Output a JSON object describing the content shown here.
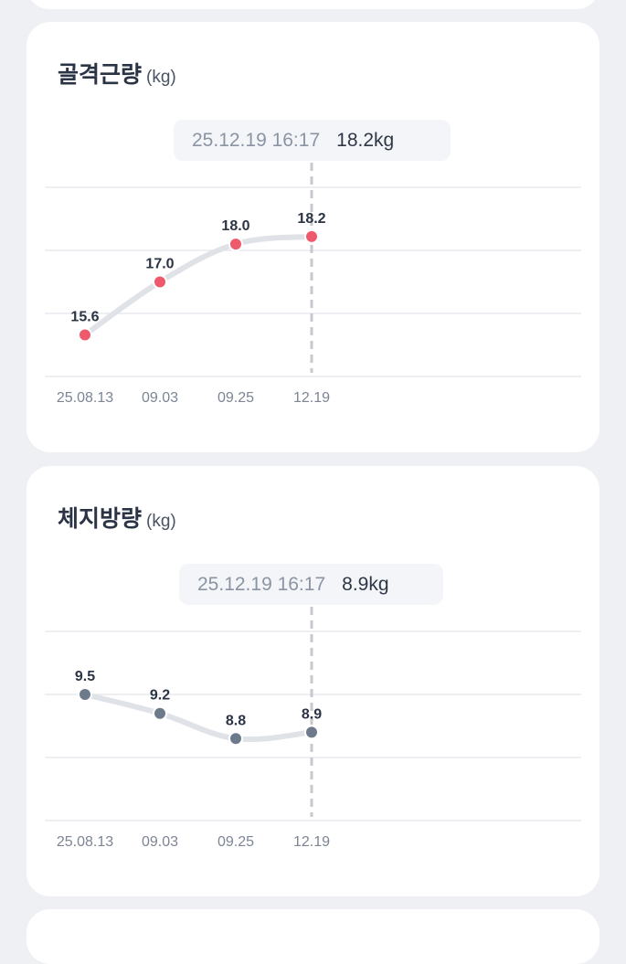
{
  "cards": [
    {
      "id": "muscle",
      "title": "골격근량",
      "unit": "(kg)",
      "tooltip": {
        "date": "25.12.19 16:17",
        "value": "18.2kg"
      },
      "point_color": "#ee5a6c"
    },
    {
      "id": "fat",
      "title": "체지방량",
      "unit": "(kg)",
      "tooltip": {
        "date": "25.12.19 16:17",
        "value": "8.9kg"
      },
      "point_color": "#6d7a8c"
    }
  ],
  "colors": {
    "line": "#dfe2e7",
    "grid": "#e8eaee",
    "cursor": "#c4c8cf",
    "axis_text": "#7c8594",
    "label_text": "#2b3445"
  },
  "chart_data": [
    {
      "type": "line",
      "title": "골격근량 (kg)",
      "categories": [
        "25.08.13",
        "09.03",
        "09.25",
        "12.19"
      ],
      "values": [
        15.6,
        17.0,
        18.0,
        18.2
      ],
      "value_labels": [
        "15.6",
        "17.0",
        "18.0",
        "18.2"
      ],
      "ylim": [
        14.5,
        19.5
      ],
      "grid": true,
      "selected_index": 3
    },
    {
      "type": "line",
      "title": "체지방량 (kg)",
      "categories": [
        "25.08.13",
        "09.03",
        "09.25",
        "12.19"
      ],
      "values": [
        9.5,
        9.2,
        8.8,
        8.9
      ],
      "value_labels": [
        "9.5",
        "9.2",
        "8.8",
        "8.9"
      ],
      "ylim": [
        7.5,
        10.5
      ],
      "grid": true,
      "selected_index": 3
    }
  ]
}
